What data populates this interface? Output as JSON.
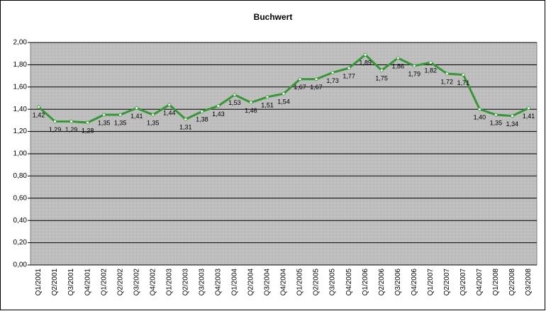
{
  "chart_data": {
    "type": "line",
    "title": "Buchwert",
    "categories": [
      "Q1/2001",
      "Q2/2001",
      "Q3/2001",
      "Q4/2001",
      "Q1/2002",
      "Q2/2002",
      "Q3/2002",
      "Q4/2002",
      "Q1/2003",
      "Q2/2003",
      "Q3/2003",
      "Q4/2003",
      "Q1/2004",
      "Q2/2004",
      "Q3/2004",
      "Q4/2004",
      "Q1/2005",
      "Q2/2005",
      "Q3/2005",
      "Q4/2005",
      "Q1/2006",
      "Q2/2006",
      "Q3/2006",
      "Q4/2006",
      "Q1/2007",
      "Q2/2007",
      "Q3/2007",
      "Q4/2007",
      "Q1/2008",
      "Q2/2008",
      "Q3/2008"
    ],
    "values": [
      1.42,
      1.29,
      1.29,
      1.28,
      1.35,
      1.35,
      1.41,
      1.35,
      1.44,
      1.31,
      1.38,
      1.43,
      1.53,
      1.46,
      1.51,
      1.54,
      1.67,
      1.67,
      1.73,
      1.77,
      1.89,
      1.75,
      1.86,
      1.79,
      1.82,
      1.72,
      1.71,
      1.4,
      1.35,
      1.34,
      1.41
    ],
    "value_labels": [
      "1,42",
      "1,29",
      "1,29",
      "1,28",
      "1,35",
      "1,35",
      "1,41",
      "1,35",
      "1,44",
      "1,31",
      "1,38",
      "1,43",
      "1,53",
      "1,46",
      "1,51",
      "1,54",
      "1,67",
      "1,67",
      "1,73",
      "1,77",
      "1,89",
      "1,75",
      "1,86",
      "1,79",
      "1,82",
      "1,72",
      "1,71",
      "1,40",
      "1,35",
      "1,34",
      "1,41"
    ],
    "color": "#339933",
    "ylim": [
      0,
      2
    ],
    "yticks": [
      {
        "value": 0,
        "label": "0,00"
      },
      {
        "value": 0.2,
        "label": "0,20"
      },
      {
        "value": 0.4,
        "label": "0,40"
      },
      {
        "value": 0.6,
        "label": "0,60"
      },
      {
        "value": 0.8,
        "label": "0,80"
      },
      {
        "value": 1,
        "label": "1,00"
      },
      {
        "value": 1.2,
        "label": "1,20"
      },
      {
        "value": 1.4,
        "label": "1,40"
      },
      {
        "value": 1.6,
        "label": "1,60"
      },
      {
        "value": 1.8,
        "label": "1,80"
      },
      {
        "value": 2,
        "label": "2,00"
      }
    ],
    "grid": true
  }
}
